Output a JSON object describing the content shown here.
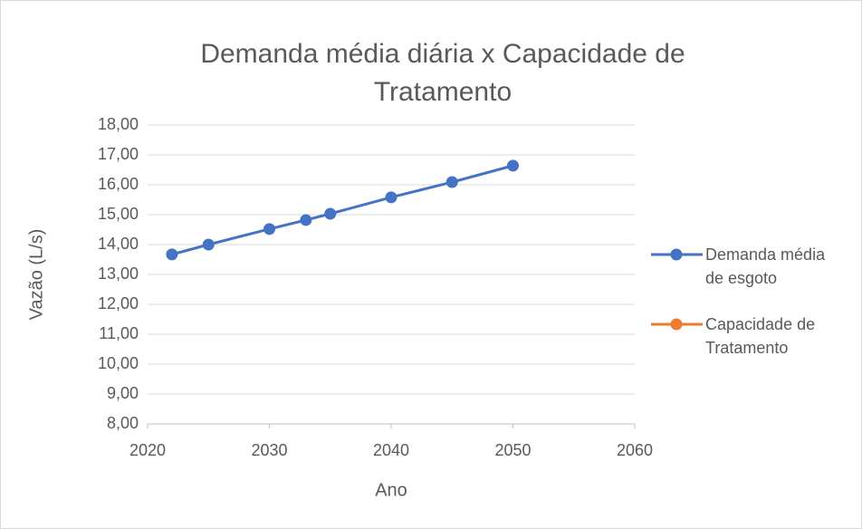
{
  "chart_data": {
    "type": "line",
    "title": "Demanda média diária x Capacidade de Tratamento",
    "x_label": "Ano",
    "y_label": "Vazão (L/s)",
    "x": [
      2022,
      2025,
      2030,
      2033,
      2035,
      2040,
      2045,
      2050
    ],
    "series": [
      {
        "name": "Demanda média de esgoto",
        "color": "#4472c4",
        "values": [
          13.67,
          14.0,
          14.52,
          14.82,
          15.03,
          15.58,
          16.09,
          16.64
        ]
      },
      {
        "name": "Capacidade de Tratamento",
        "color": "#ed7d31",
        "values": [
          null,
          null,
          null,
          null,
          null,
          null,
          null,
          null
        ]
      }
    ],
    "xlim": [
      2020,
      2060
    ],
    "xticks": [
      2020,
      2030,
      2040,
      2050,
      2060
    ],
    "ylim": [
      8,
      18
    ],
    "yticks": [
      {
        "value": 8,
        "label": "8,00"
      },
      {
        "value": 9,
        "label": "9,00"
      },
      {
        "value": 10,
        "label": "10,00"
      },
      {
        "value": 11,
        "label": "11,00"
      },
      {
        "value": 12,
        "label": "12,00"
      },
      {
        "value": 13,
        "label": "13,00"
      },
      {
        "value": 14,
        "label": "14,00"
      },
      {
        "value": 15,
        "label": "15,00"
      },
      {
        "value": 16,
        "label": "16,00"
      },
      {
        "value": 17,
        "label": "17,00"
      },
      {
        "value": 18,
        "label": "18,00"
      }
    ],
    "grid": true,
    "legend": "right"
  }
}
